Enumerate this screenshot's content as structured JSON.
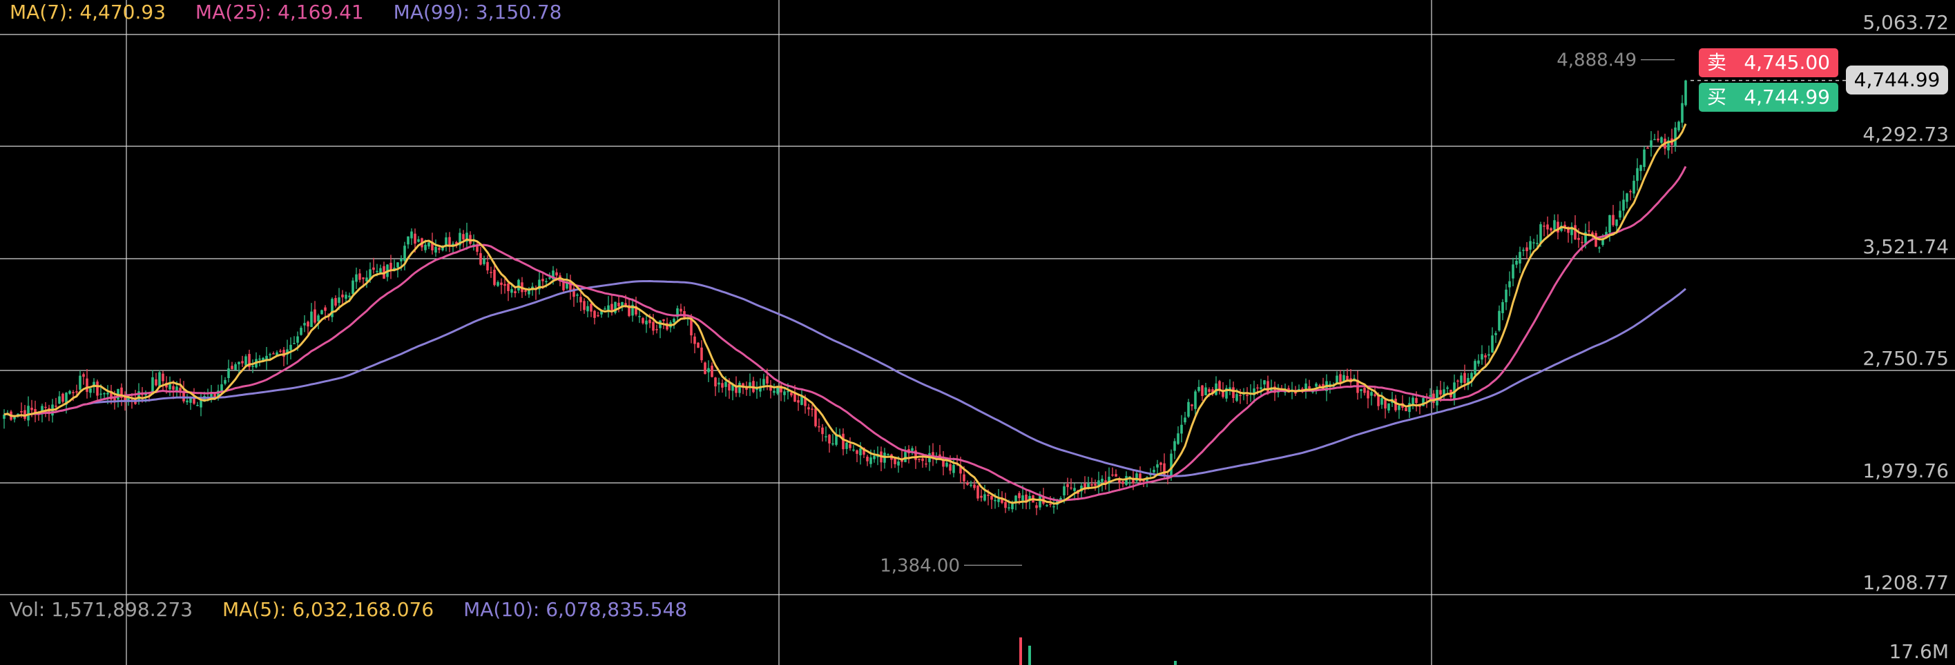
{
  "legend": {
    "ma7": {
      "label": "MA(7)",
      "value": "4,470.93",
      "color": "#f2c14e"
    },
    "ma25": {
      "label": "MA(25)",
      "value": "4,169.41",
      "color": "#e0559c"
    },
    "ma99": {
      "label": "MA(99)",
      "value": "3,150.78",
      "color": "#8b7fd6"
    }
  },
  "volume_legend": {
    "vol": {
      "label": "Vol",
      "value": "1,571,898.273",
      "color": "#a0a0a0"
    },
    "ma5": {
      "label": "MA(5)",
      "value": "6,032,168.076",
      "color": "#f2c14e"
    },
    "ma10": {
      "label": "MA(10)",
      "value": "6,078,835.548",
      "color": "#8b7fd6"
    }
  },
  "order_book": {
    "sell_label": "卖",
    "sell_price": "4,745.00",
    "sell_color": "#f6465d",
    "buy_label": "买",
    "buy_price": "4,744.99",
    "buy_color": "#2ebd85"
  },
  "current_price": "4,744.99",
  "chart_data": {
    "type": "candlestick",
    "y_ticks": [
      "5,063.72",
      "4,292.73",
      "3,521.74",
      "2,750.75",
      "1,979.76",
      "1,208.77"
    ],
    "ylim": [
      1208.77,
      5063.72
    ],
    "volume_tick": "17.6M",
    "high_annotation": "4,888.49",
    "low_annotation": "1,384.00",
    "grid": true,
    "up_color": "#2ebd85",
    "down_color": "#f6465d",
    "close_anchors": [
      [
        0,
        2430
      ],
      [
        12,
        2460
      ],
      [
        22,
        2650
      ],
      [
        30,
        2560
      ],
      [
        38,
        2540
      ],
      [
        45,
        2680
      ],
      [
        52,
        2560
      ],
      [
        60,
        2530
      ],
      [
        68,
        2820
      ],
      [
        75,
        2770
      ],
      [
        82,
        2900
      ],
      [
        90,
        3120
      ],
      [
        97,
        3200
      ],
      [
        104,
        3420
      ],
      [
        110,
        3400
      ],
      [
        118,
        3660
      ],
      [
        126,
        3600
      ],
      [
        134,
        3700
      ],
      [
        143,
        3300
      ],
      [
        152,
        3330
      ],
      [
        160,
        3390
      ],
      [
        170,
        3100
      ],
      [
        180,
        3180
      ],
      [
        188,
        3010
      ],
      [
        197,
        3140
      ],
      [
        204,
        2700
      ],
      [
        212,
        2600
      ],
      [
        222,
        2640
      ],
      [
        230,
        2560
      ],
      [
        238,
        2290
      ],
      [
        245,
        2220
      ],
      [
        252,
        2100
      ],
      [
        262,
        2150
      ],
      [
        274,
        2080
      ],
      [
        284,
        1840
      ],
      [
        293,
        1820
      ],
      [
        303,
        1830
      ],
      [
        312,
        1940
      ],
      [
        322,
        2000
      ],
      [
        330,
        2010
      ],
      [
        337,
        2050
      ],
      [
        345,
        2610
      ],
      [
        353,
        2590
      ],
      [
        362,
        2610
      ],
      [
        370,
        2630
      ],
      [
        380,
        2600
      ],
      [
        388,
        2690
      ],
      [
        398,
        2520
      ],
      [
        405,
        2500
      ],
      [
        412,
        2550
      ],
      [
        420,
        2600
      ],
      [
        430,
        2860
      ],
      [
        438,
        3540
      ],
      [
        447,
        3740
      ],
      [
        456,
        3680
      ],
      [
        462,
        3640
      ],
      [
        470,
        3950
      ],
      [
        476,
        4330
      ],
      [
        483,
        4280
      ],
      [
        487,
        4745
      ]
    ],
    "ma_final": {
      "ma7": 4470.93,
      "ma25": 4169.41,
      "ma99": 3150.78
    }
  }
}
